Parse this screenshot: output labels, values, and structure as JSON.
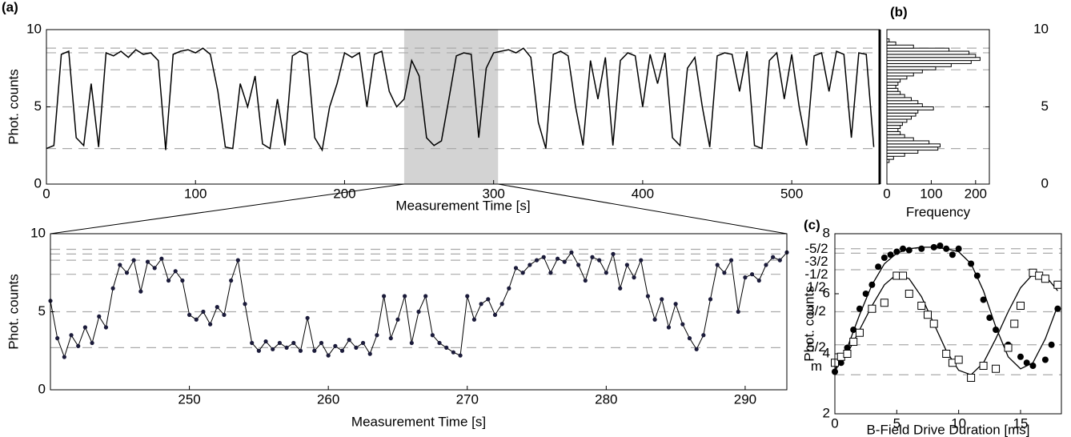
{
  "chart_data": [
    {
      "type": "line",
      "label": "(a)",
      "xlabel": "Measurement Time [s]",
      "ylabel": "Phot. counts",
      "color": "#000000",
      "x": [
        0,
        5,
        10,
        15,
        20,
        25,
        30,
        35,
        40,
        45,
        50,
        55,
        60,
        65,
        70,
        75,
        80,
        85,
        90,
        95,
        100,
        105,
        110,
        115,
        120,
        125,
        130,
        135,
        140,
        145,
        150,
        155,
        160,
        165,
        170,
        175,
        180,
        185,
        190,
        195,
        200,
        205,
        210,
        215,
        220,
        225,
        230,
        235,
        240,
        245,
        250,
        255,
        260,
        265,
        270,
        275,
        280,
        285,
        290,
        295,
        300,
        305,
        310,
        315,
        320,
        325,
        330,
        335,
        340,
        345,
        350,
        355,
        360,
        365,
        370,
        375,
        380,
        385,
        390,
        395,
        400,
        405,
        410,
        415,
        420,
        425,
        430,
        435,
        440,
        445,
        450,
        455,
        460,
        465,
        470,
        475,
        480,
        485,
        490,
        495,
        500,
        505,
        510,
        515,
        520,
        525,
        530,
        535,
        540,
        545,
        550,
        555
      ],
      "values": [
        2.3,
        2.5,
        8.4,
        8.6,
        3.0,
        2.5,
        6.5,
        2.4,
        8.5,
        8.3,
        8.6,
        8.2,
        8.7,
        8.4,
        8.5,
        8.0,
        2.2,
        8.4,
        8.6,
        8.7,
        8.5,
        8.8,
        8.4,
        6.0,
        2.4,
        2.3,
        6.5,
        5.0,
        7.0,
        2.6,
        2.3,
        5.5,
        2.5,
        8.3,
        8.6,
        8.4,
        3.0,
        2.2,
        5.0,
        6.5,
        8.5,
        8.2,
        8.5,
        5.0,
        8.4,
        8.6,
        6.0,
        5.0,
        5.5,
        8.0,
        7.0,
        3.0,
        2.5,
        2.8,
        5.5,
        8.3,
        8.5,
        8.4,
        3.0,
        7.5,
        8.5,
        8.6,
        8.7,
        8.5,
        8.8,
        8.2,
        4.0,
        2.3,
        8.4,
        8.6,
        8.3,
        5.0,
        2.5,
        8.0,
        5.5,
        8.2,
        2.5,
        8.0,
        8.5,
        8.3,
        5.0,
        8.4,
        6.5,
        8.5,
        3.0,
        2.5,
        7.5,
        8.2,
        5.0,
        2.4,
        8.3,
        8.5,
        8.4,
        6.0,
        8.6,
        2.5,
        2.3,
        8.0,
        8.5,
        5.5,
        8.4,
        5.0,
        2.5,
        8.3,
        8.5,
        6.0,
        8.6,
        8.4,
        3.0,
        8.5,
        8.4,
        2.4
      ],
      "xlim": [
        0,
        559
      ],
      "ylim": [
        0,
        10
      ],
      "xticks": [
        0,
        100,
        200,
        300,
        400,
        500
      ],
      "yticks": [
        0,
        5,
        10
      ],
      "hlines": [
        2.3,
        5.0,
        7.4,
        8.5,
        8.8
      ],
      "span": [
        240,
        303
      ]
    },
    {
      "type": "histogram",
      "orientation": "horizontal",
      "label": "(b)",
      "xlabel": "Frequency",
      "color": "#ffffff",
      "bins": [
        1.4,
        1.6,
        1.8,
        2.0,
        2.2,
        2.4,
        2.6,
        2.8,
        3.0,
        3.2,
        3.4,
        3.6,
        3.8,
        4.0,
        4.2,
        4.4,
        4.6,
        4.8,
        5.0,
        5.2,
        5.4,
        5.6,
        5.8,
        6.0,
        6.2,
        6.4,
        6.6,
        6.8,
        7.0,
        7.2,
        7.4,
        7.6,
        7.8,
        8.0,
        8.2,
        8.4,
        8.6,
        8.8,
        9.0,
        9.2,
        9.4
      ],
      "counts": [
        5,
        15,
        40,
        70,
        115,
        120,
        95,
        60,
        40,
        30,
        25,
        30,
        35,
        45,
        55,
        65,
        70,
        105,
        80,
        70,
        55,
        40,
        30,
        25,
        20,
        25,
        30,
        45,
        60,
        80,
        110,
        145,
        190,
        210,
        200,
        185,
        140,
        60,
        20,
        5
      ],
      "xlim": [
        0,
        231
      ],
      "ylim": [
        0,
        10
      ],
      "xticks": [
        0,
        100,
        200
      ],
      "yticks": [
        0,
        5,
        10
      ],
      "hlines": [
        2.3,
        5.0,
        7.4,
        8.5,
        8.8
      ]
    },
    {
      "type": "line",
      "markers": true,
      "xlabel": "Measurement Time [s]",
      "ylabel": "Phot. counts",
      "color": "#000000",
      "marker_color": "#1b1b3a",
      "x": [
        240,
        240.5,
        241,
        241.5,
        242,
        242.5,
        243,
        243.5,
        244,
        244.5,
        245,
        245.5,
        246,
        246.5,
        247,
        247.5,
        248,
        248.5,
        249,
        249.5,
        250,
        250.5,
        251,
        251.5,
        252,
        252.5,
        253,
        253.5,
        254,
        254.5,
        255,
        255.5,
        256,
        256.5,
        257,
        257.5,
        258,
        258.5,
        259,
        259.5,
        260,
        260.5,
        261,
        261.5,
        262,
        262.5,
        263,
        263.5,
        264,
        264.5,
        265,
        265.5,
        266,
        266.5,
        267,
        267.5,
        268,
        268.5,
        269,
        269.5,
        270,
        270.5,
        271,
        271.5,
        272,
        272.5,
        273,
        273.5,
        274,
        274.5,
        275,
        275.5,
        276,
        276.5,
        277,
        277.5,
        278,
        278.5,
        279,
        279.5,
        280,
        280.5,
        281,
        281.5,
        282,
        282.5,
        283,
        283.5,
        284,
        284.5,
        285,
        285.5,
        286,
        286.5,
        287,
        287.5,
        288,
        288.5,
        289,
        289.5,
        290,
        290.5,
        291,
        291.5,
        292,
        292.5,
        293
      ],
      "values": [
        5.7,
        3.3,
        2.1,
        3.5,
        2.8,
        4.0,
        3.0,
        4.7,
        4.0,
        6.5,
        8.0,
        7.5,
        8.3,
        6.3,
        8.2,
        7.8,
        8.4,
        7.0,
        7.6,
        7.0,
        4.8,
        4.5,
        5.0,
        4.2,
        5.3,
        4.8,
        7.0,
        8.3,
        5.5,
        3.0,
        2.5,
        3.1,
        2.6,
        3.0,
        2.7,
        3.0,
        2.5,
        4.6,
        2.5,
        3.0,
        2.2,
        2.8,
        2.5,
        3.2,
        2.7,
        3.0,
        2.3,
        3.5,
        6.0,
        3.3,
        4.5,
        6.0,
        3.0,
        5.0,
        6.0,
        3.5,
        3.0,
        2.7,
        2.4,
        2.2,
        6.0,
        4.5,
        5.5,
        5.8,
        4.8,
        5.5,
        6.5,
        7.8,
        7.5,
        8.0,
        8.3,
        8.5,
        7.5,
        8.4,
        8.2,
        8.8,
        8.0,
        7.0,
        8.5,
        8.3,
        7.5,
        8.7,
        6.5,
        8.0,
        7.2,
        8.3,
        6.0,
        4.5,
        5.8,
        4.0,
        5.5,
        4.2,
        3.3,
        2.6,
        3.5,
        5.8,
        8.0,
        7.5,
        8.3,
        5.0,
        7.2,
        7.4,
        7.0,
        8.0,
        8.5,
        8.3,
        8.8
      ],
      "xlim": [
        240,
        293
      ],
      "ylim": [
        0,
        10
      ],
      "xticks": [
        250,
        260,
        270,
        280,
        290
      ],
      "yticks": [
        0,
        5,
        10
      ],
      "hlines": [
        9.0,
        8.7,
        8.3,
        7.4,
        5.0,
        2.7
      ],
      "hline_labels": [
        "-5/2",
        "-3/2",
        "-1/2",
        "1/2",
        "3/2",
        "5/2"
      ],
      "y2label": "m"
    },
    {
      "type": "scatter",
      "label": "(c)",
      "xlabel": "B-Field Drive Duration [ms]",
      "ylabel": "Phot. counts",
      "series": [
        {
          "marker": "circle",
          "color": "#000000",
          "x": [
            0,
            0.5,
            1,
            1.5,
            2,
            2.5,
            3,
            3.5,
            4,
            4.5,
            5,
            5.5,
            6,
            7,
            8,
            8.5,
            9,
            9.5,
            10,
            11,
            11.5,
            12,
            12.5,
            13,
            14,
            15,
            15.5,
            16,
            17,
            17.5,
            18
          ],
          "values": [
            3.4,
            3.7,
            4.2,
            4.8,
            5.5,
            6.0,
            6.3,
            6.9,
            7.2,
            7.3,
            7.4,
            7.5,
            7.45,
            7.5,
            7.55,
            7.6,
            7.5,
            7.3,
            7.5,
            7.0,
            6.6,
            5.8,
            5.2,
            4.8,
            4.3,
            3.9,
            3.7,
            3.6,
            3.8,
            4.3,
            5.5
          ]
        },
        {
          "marker": "square",
          "color": "#000000",
          "x": [
            0,
            0.5,
            1,
            1.5,
            2,
            3,
            4,
            5,
            5.5,
            6,
            7,
            7.5,
            8,
            9,
            9.5,
            10,
            11,
            12,
            13,
            14,
            14.5,
            15,
            16,
            16.5,
            17,
            18
          ],
          "values": [
            3.7,
            3.9,
            4.0,
            4.4,
            4.7,
            5.5,
            5.7,
            6.6,
            6.6,
            6.0,
            5.6,
            5.3,
            5.0,
            4.0,
            3.7,
            3.8,
            3.2,
            3.6,
            3.5,
            4.2,
            5.0,
            5.6,
            6.7,
            6.6,
            6.5,
            6.3
          ]
        }
      ],
      "fits": [
        {
          "x": [
            0,
            1,
            2,
            3,
            4,
            5,
            6,
            7,
            8,
            9,
            10,
            11,
            12,
            13,
            14,
            15,
            16,
            17,
            18
          ],
          "values": [
            3.4,
            4.2,
            5.3,
            6.3,
            7.0,
            7.35,
            7.5,
            7.55,
            7.55,
            7.5,
            7.4,
            7.0,
            6.1,
            4.9,
            3.9,
            3.5,
            3.7,
            4.5,
            5.6
          ]
        },
        {
          "x": [
            0,
            1,
            2,
            3,
            4,
            5,
            6,
            7,
            8,
            9,
            10,
            11,
            12,
            13,
            14,
            15,
            16,
            17,
            18
          ],
          "values": [
            3.5,
            4.0,
            4.8,
            5.6,
            6.3,
            6.65,
            6.5,
            5.9,
            5.0,
            4.1,
            3.45,
            3.3,
            3.7,
            4.5,
            5.4,
            6.2,
            6.65,
            6.6,
            6.1
          ]
        }
      ],
      "xlim": [
        0,
        18.3
      ],
      "ylim": [
        2,
        8
      ],
      "xticks": [
        0,
        5,
        10,
        15
      ],
      "yticks": [
        2,
        4,
        6,
        8
      ],
      "hlines": [
        7.5,
        7.35,
        6.8,
        5.4,
        4.3,
        3.3
      ]
    }
  ]
}
